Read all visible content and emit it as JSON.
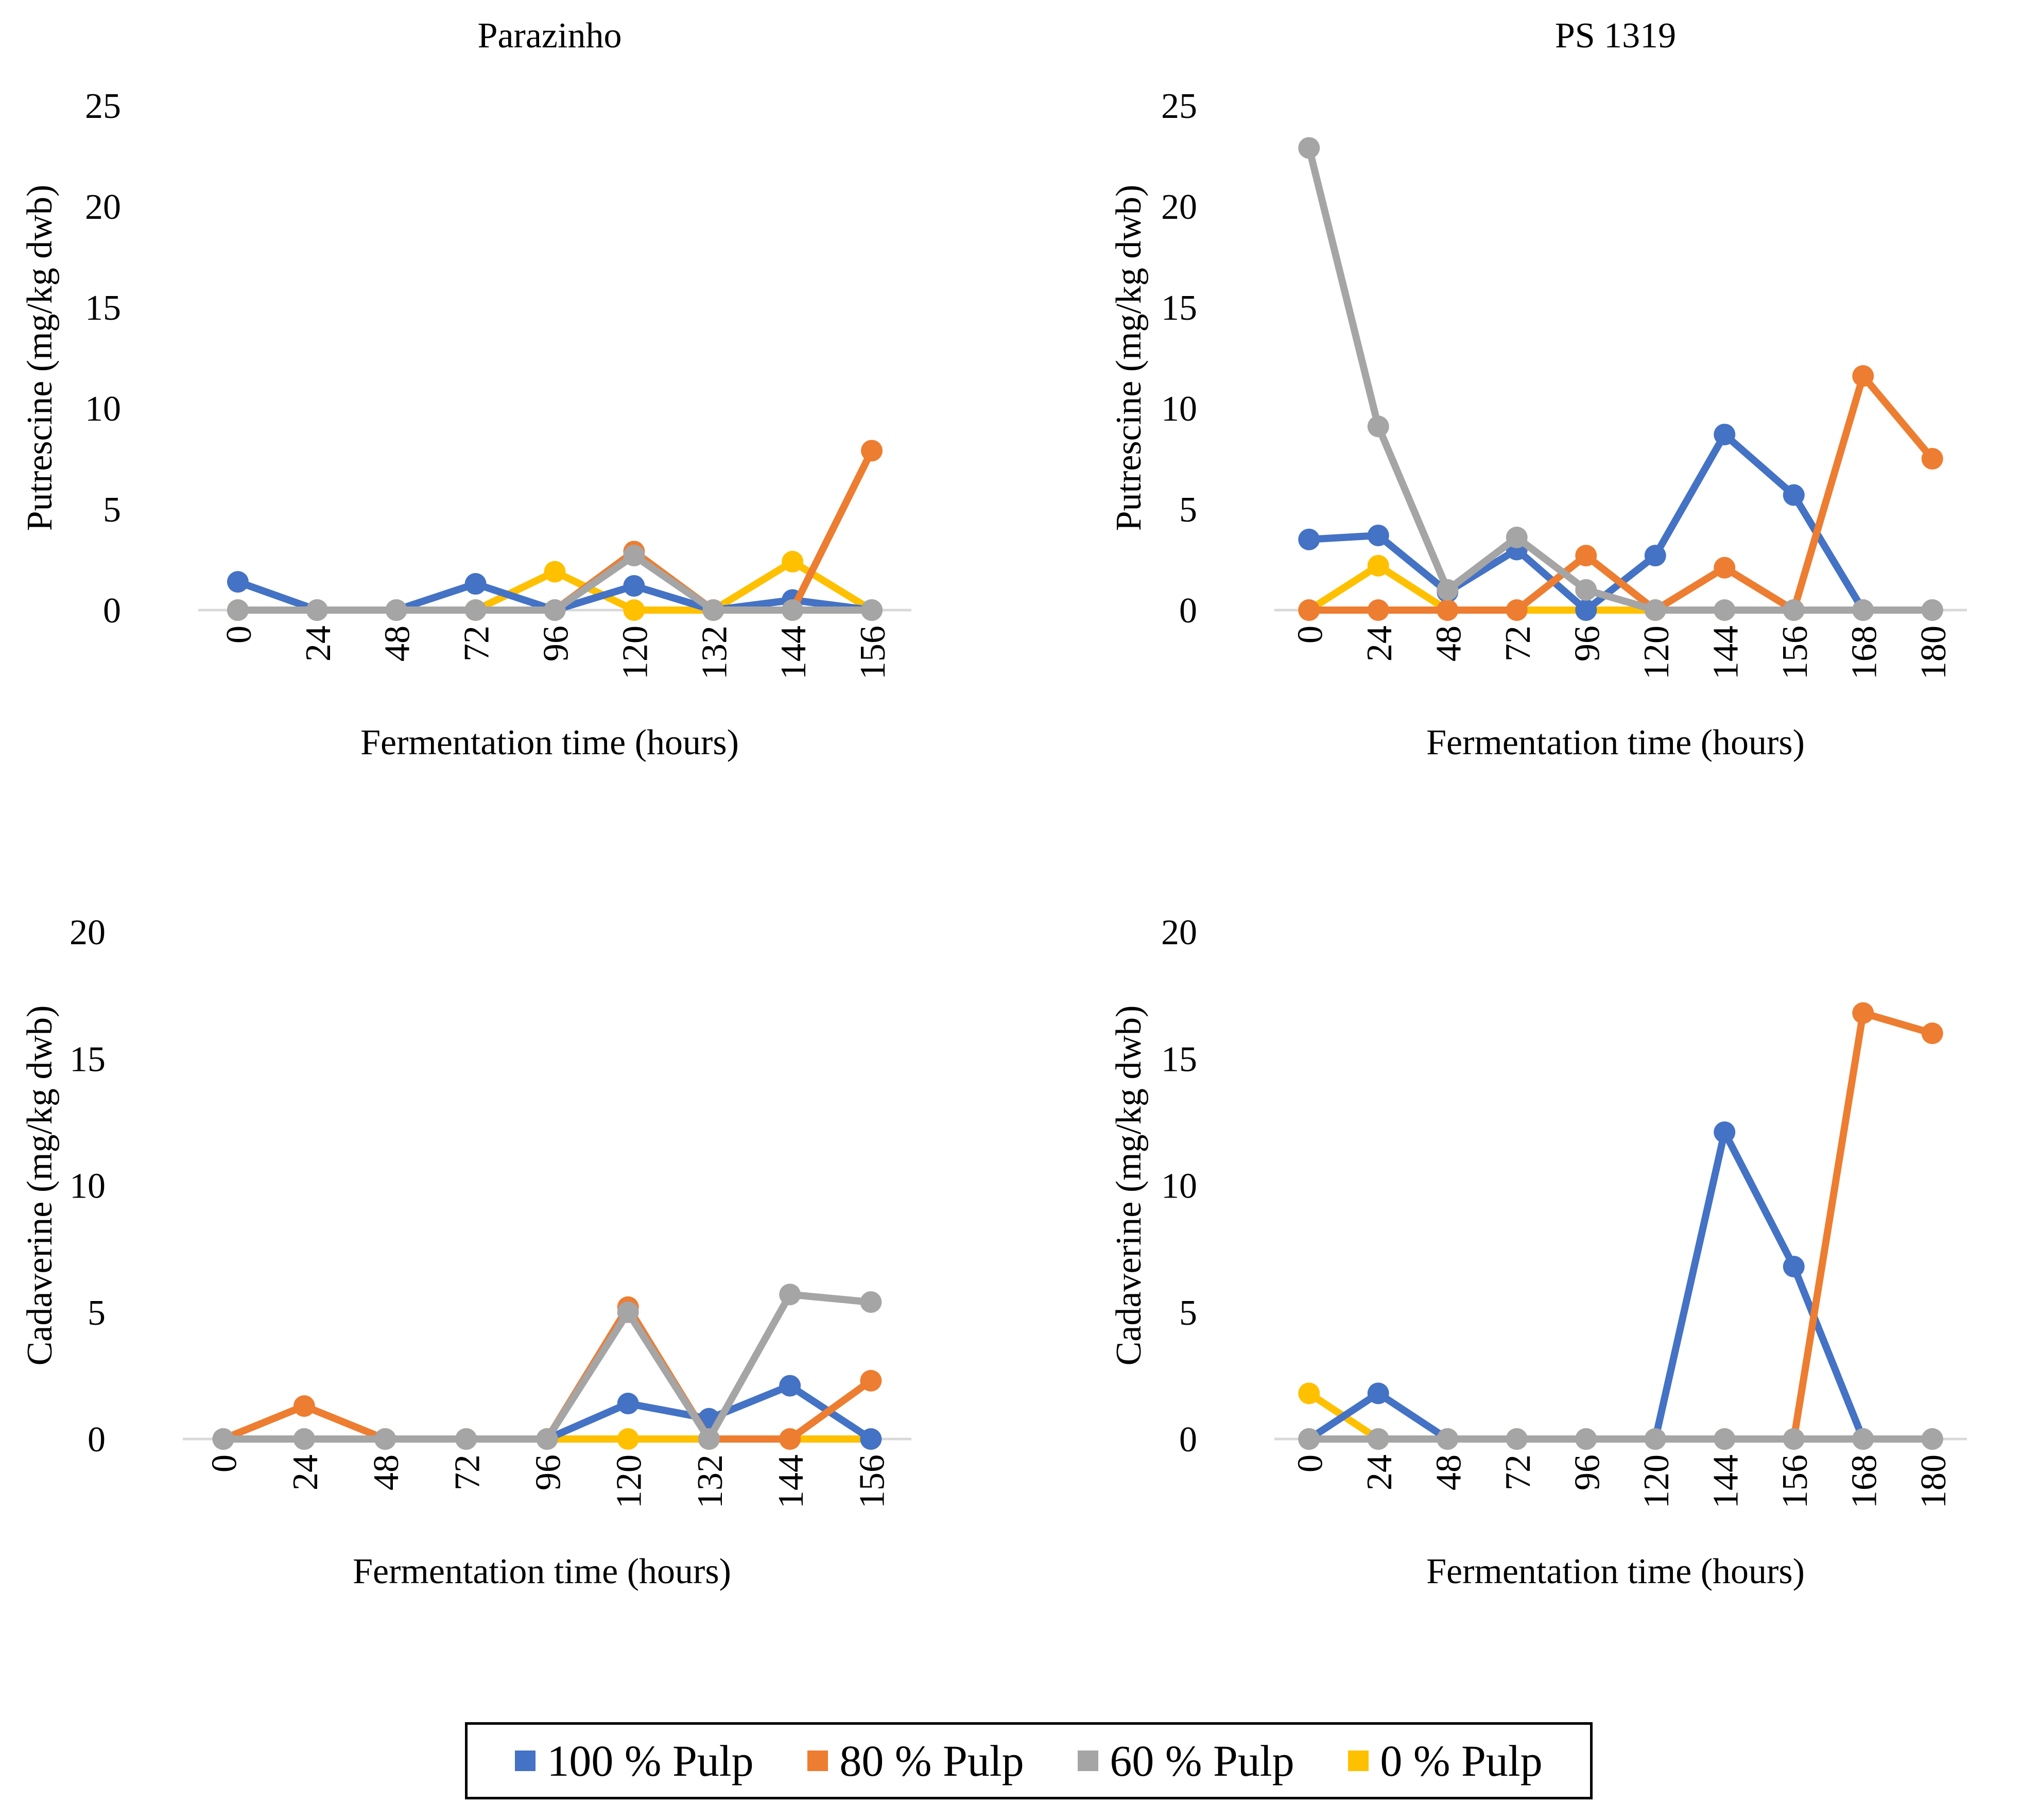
{
  "colors": {
    "100% Pulp": "#4472c4",
    "80% Pulp": "#ed7d31",
    "60% Pulp": "#a5a5a5",
    "0% Pulp": "#ffc000"
  },
  "legend": [
    {
      "label": "100 % Pulp",
      "color": "#4472c4"
    },
    {
      "label": "80 % Pulp",
      "color": "#ed7d31"
    },
    {
      "label": "60 % Pulp",
      "color": "#a5a5a5"
    },
    {
      "label": "0 % Pulp",
      "color": "#ffc000"
    }
  ],
  "chart_data": [
    {
      "type": "line",
      "title": "Parazinho",
      "xlabel": "Fermentation time (hours)",
      "ylabel": "Putrescine (mg/kg dwb)",
      "categories": [
        "0",
        "24",
        "48",
        "72",
        "96",
        "120",
        "132",
        "144",
        "156"
      ],
      "ylim": [
        0,
        25
      ],
      "yticks": [
        "0",
        "5",
        "10",
        "15",
        "20",
        "25"
      ],
      "series": [
        {
          "name": "100 % Pulp",
          "values": [
            1.4,
            0,
            0,
            1.3,
            0,
            1.2,
            0,
            0.5,
            0
          ]
        },
        {
          "name": "80 % Pulp",
          "values": [
            0,
            0,
            0,
            0,
            0,
            2.9,
            0,
            0,
            7.9
          ]
        },
        {
          "name": "60 % Pulp",
          "values": [
            0,
            0,
            0,
            0,
            0,
            2.7,
            0,
            0,
            0
          ]
        },
        {
          "name": "0 % Pulp",
          "values": [
            0,
            0,
            0,
            0,
            1.9,
            0,
            0,
            2.4,
            0
          ]
        }
      ]
    },
    {
      "type": "line",
      "title": "PS 1319",
      "xlabel": "Fermentation time (hours)",
      "ylabel": "Putrescine (mg/kg dwb)",
      "categories": [
        "0",
        "24",
        "48",
        "72",
        "96",
        "120",
        "144",
        "156",
        "168",
        "180"
      ],
      "ylim": [
        0,
        25
      ],
      "yticks": [
        "0",
        "5",
        "10",
        "15",
        "20",
        "25"
      ],
      "series": [
        {
          "name": "100 % Pulp",
          "values": [
            3.5,
            3.7,
            0.9,
            3.0,
            0,
            2.7,
            8.7,
            5.7,
            0,
            0
          ]
        },
        {
          "name": "80 % Pulp",
          "values": [
            0,
            0,
            0,
            0,
            2.7,
            0,
            2.1,
            0,
            11.6,
            7.5
          ]
        },
        {
          "name": "60 % Pulp",
          "values": [
            22.9,
            9.1,
            1.0,
            3.6,
            1.0,
            0,
            0,
            0,
            0,
            0
          ]
        },
        {
          "name": "0 % Pulp",
          "values": [
            0,
            2.2,
            0,
            0,
            0,
            0,
            0,
            0,
            0,
            0
          ]
        }
      ]
    },
    {
      "type": "line",
      "title": "",
      "xlabel": "Fermentation time (hours)",
      "ylabel": "Cadaverine (mg/kg dwb)",
      "categories": [
        "0",
        "24",
        "48",
        "72",
        "96",
        "120",
        "132",
        "144",
        "156"
      ],
      "ylim": [
        0,
        20
      ],
      "yticks": [
        "0",
        "5",
        "10",
        "15",
        "20"
      ],
      "series": [
        {
          "name": "100 % Pulp",
          "values": [
            0,
            0,
            0,
            0,
            0,
            1.4,
            0.8,
            2.1,
            0
          ]
        },
        {
          "name": "80 % Pulp",
          "values": [
            0,
            1.3,
            0,
            0,
            0,
            5.2,
            0,
            0,
            2.3
          ]
        },
        {
          "name": "60 % Pulp",
          "values": [
            0,
            0,
            0,
            0,
            0,
            5.0,
            0,
            5.7,
            5.4
          ]
        },
        {
          "name": "0 % Pulp",
          "values": [
            0,
            0,
            0,
            0,
            0,
            0,
            0,
            0,
            0
          ]
        }
      ]
    },
    {
      "type": "line",
      "title": "",
      "xlabel": "Fermentation time (hours)",
      "ylabel": "Cadaverine (mg/kg dwb)",
      "categories": [
        "0",
        "24",
        "48",
        "72",
        "96",
        "120",
        "144",
        "156",
        "168",
        "180"
      ],
      "ylim": [
        0,
        20
      ],
      "yticks": [
        "0",
        "5",
        "10",
        "15",
        "20"
      ],
      "series": [
        {
          "name": "100 % Pulp",
          "values": [
            0,
            1.8,
            0,
            0,
            0,
            0,
            12.1,
            6.8,
            0,
            0
          ]
        },
        {
          "name": "80 % Pulp",
          "values": [
            0,
            0,
            0,
            0,
            0,
            0,
            0,
            0,
            16.8,
            16.0
          ]
        },
        {
          "name": "60 % Pulp",
          "values": [
            0,
            0,
            0,
            0,
            0,
            0,
            0,
            0,
            0,
            0
          ]
        },
        {
          "name": "0 % Pulp",
          "values": [
            1.8,
            0,
            0,
            0,
            0,
            0,
            0,
            0,
            0,
            0
          ]
        }
      ]
    }
  ]
}
